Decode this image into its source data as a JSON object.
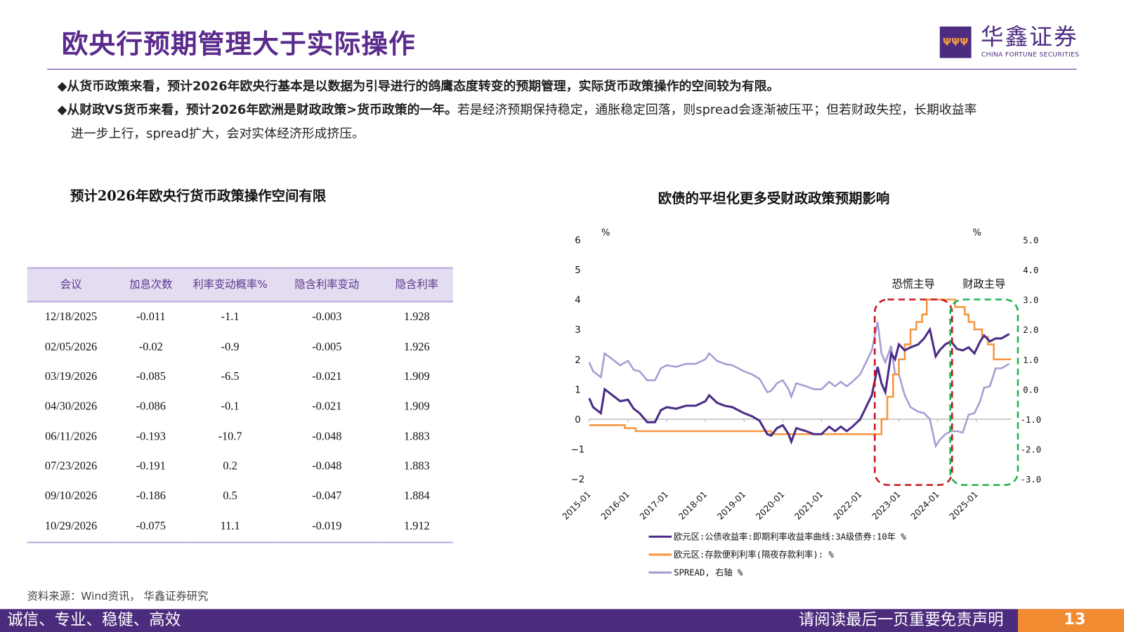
{
  "header": {
    "title": "欧央行预期管理大于实际操作",
    "logo_cn": "华鑫证券",
    "logo_en": "CHINA FORTUNE SECURITIES",
    "logo_mark": "ΨΨΨ"
  },
  "bullets": [
    {
      "marker": "◆",
      "bold": "从货币政策来看，预计2026年欧央行基本是以数据为引导进行的鸽鹰态度转变的预期管理，实际货币政策操作的空间较为有限。",
      "rest": ""
    },
    {
      "marker": "◆",
      "bold": "从财政VS货币来看，预计2026年欧洲是财政政策>货币政策的一年。",
      "rest": "若是经济预期保持稳定，通胀稳定回落，则spread会逐渐被压平；但若财政失控，长期收益率",
      "cont": "进一步上行，spread扩大，会对实体经济形成挤压。"
    }
  ],
  "table": {
    "title": "预计2026年欧央行货币政策操作空间有限",
    "headers": [
      "会议",
      "加息次数",
      "利率变动概率%",
      "隐含利率变动",
      "隐含利率"
    ],
    "rows": [
      [
        "12/18/2025",
        "-0.011",
        "-1.1",
        "-0.003",
        "1.928"
      ],
      [
        "02/05/2026",
        "-0.02",
        "-0.9",
        "-0.005",
        "1.926"
      ],
      [
        "03/19/2026",
        "-0.085",
        "-6.5",
        "-0.021",
        "1.909"
      ],
      [
        "04/30/2026",
        "-0.086",
        "-0.1",
        "-0.021",
        "1.909"
      ],
      [
        "06/11/2026",
        "-0.193",
        "-10.7",
        "-0.048",
        "1.883"
      ],
      [
        "07/23/2026",
        "-0.191",
        "0.2",
        "-0.048",
        "1.883"
      ],
      [
        "09/10/2026",
        "-0.186",
        "0.5",
        "-0.047",
        "1.884"
      ],
      [
        "10/29/2026",
        "-0.075",
        "11.1",
        "-0.019",
        "1.912"
      ]
    ]
  },
  "chart_data": {
    "type": "line",
    "title": "欧债的平坦化更多受财政政策预期影响",
    "ylabel_left": "%",
    "ylabel_right": "%",
    "ylim_left": [
      -2,
      6
    ],
    "ylim_right": [
      -3,
      5
    ],
    "yticks_left": [
      "6",
      "5",
      "4",
      "3",
      "2",
      "1",
      "0",
      "−1",
      "−2"
    ],
    "yticks_right": [
      "5.0",
      "4.0",
      "3.0",
      "2.0",
      "1.0",
      "0.0",
      "-1.0",
      "-2.0",
      "-3.0"
    ],
    "xticks": [
      "2015-01",
      "2016-01",
      "2017-01",
      "2018-01",
      "2019-01",
      "2020-01",
      "2021-01",
      "2022-01",
      "2023-01",
      "2024-01",
      "2025-01"
    ],
    "xlim": [
      2015.0,
      2026.0
    ],
    "annotations": [
      {
        "text": "恐慌主导",
        "range": [
          2022.45,
          2024.3
        ],
        "color": "#c8141e"
      },
      {
        "text": "财政主导",
        "range": [
          2024.4,
          2026.0
        ],
        "color": "#1db34b"
      }
    ],
    "series": [
      {
        "name": "欧元区:公债收益率:即期利率收益率曲线:3A级债券:10年 %",
        "color": "#4b2b86",
        "axis": "left",
        "x": [
          2015.0,
          2015.1,
          2015.2,
          2015.3,
          2015.4,
          2015.5,
          2015.65,
          2015.8,
          2016.0,
          2016.15,
          2016.3,
          2016.5,
          2016.7,
          2016.85,
          2017.0,
          2017.25,
          2017.5,
          2017.75,
          2018.0,
          2018.1,
          2018.3,
          2018.5,
          2018.7,
          2019.0,
          2019.2,
          2019.4,
          2019.6,
          2019.7,
          2019.85,
          2020.0,
          2020.15,
          2020.22,
          2020.35,
          2020.6,
          2020.8,
          2021.0,
          2021.2,
          2021.35,
          2021.5,
          2021.65,
          2021.8,
          2022.0,
          2022.15,
          2022.3,
          2022.45,
          2022.55,
          2022.65,
          2022.8,
          2022.9,
          2023.0,
          2023.15,
          2023.3,
          2023.5,
          2023.65,
          2023.8,
          2023.95,
          2024.05,
          2024.2,
          2024.35,
          2024.5,
          2024.65,
          2024.8,
          2024.95,
          2025.1,
          2025.2,
          2025.35,
          2025.5,
          2025.65,
          2025.85
        ],
        "y": [
          0.7,
          0.4,
          0.3,
          0.2,
          1.0,
          0.9,
          0.75,
          0.6,
          0.65,
          0.35,
          0.2,
          -0.1,
          -0.1,
          0.3,
          0.4,
          0.35,
          0.45,
          0.45,
          0.6,
          0.8,
          0.55,
          0.45,
          0.4,
          0.2,
          0.1,
          -0.05,
          -0.5,
          -0.55,
          -0.3,
          -0.2,
          -0.5,
          -0.75,
          -0.3,
          -0.4,
          -0.5,
          -0.5,
          -0.25,
          -0.4,
          -0.25,
          -0.4,
          -0.25,
          0.0,
          0.4,
          0.8,
          1.75,
          1.2,
          0.9,
          2.2,
          2.0,
          2.5,
          2.3,
          2.4,
          2.5,
          2.7,
          3.0,
          2.1,
          2.3,
          2.5,
          2.6,
          2.35,
          2.3,
          2.4,
          2.2,
          2.6,
          2.8,
          2.6,
          2.7,
          2.7,
          2.85
        ]
      },
      {
        "name": "欧元区:存款便利利率(隔夜存款利率): %",
        "color": "#f5963f",
        "axis": "left",
        "step": true,
        "x": [
          2015.0,
          2015.92,
          2016.2,
          2019.7,
          2022.55,
          2022.7,
          2022.85,
          2023.0,
          2023.15,
          2023.3,
          2023.45,
          2023.6,
          2023.72,
          2024.45,
          2024.7,
          2024.8,
          2024.95,
          2025.15,
          2025.3,
          2025.45,
          2025.9
        ],
        "y": [
          -0.2,
          -0.3,
          -0.4,
          -0.5,
          0.0,
          0.75,
          1.5,
          2.0,
          2.5,
          3.0,
          3.25,
          3.5,
          4.0,
          3.75,
          3.5,
          3.25,
          3.0,
          2.75,
          2.5,
          2.0,
          2.0
        ]
      },
      {
        "name": "SPREAD, 右轴 %",
        "color": "#a79bd3",
        "axis": "right",
        "derived": "yield minus deposit rate"
      }
    ],
    "legend_position": "bottom"
  },
  "footer": {
    "source": "资料来源：Wind资讯， 华鑫证券研究",
    "slogan": "诚信、专业、稳健、高效",
    "disclaimer": "请阅读最后一页重要免责声明",
    "page": "13"
  }
}
